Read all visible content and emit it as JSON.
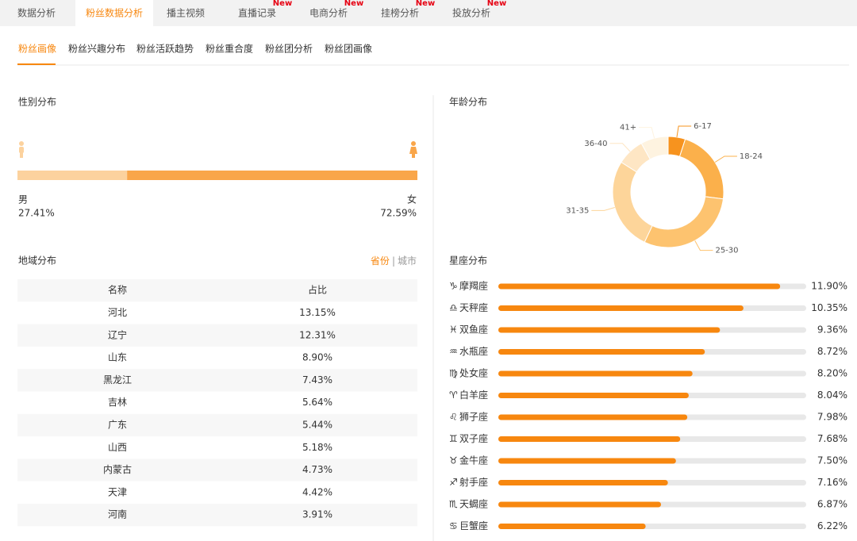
{
  "tabs": [
    {
      "label": "数据分析"
    },
    {
      "label": "粉丝数据分析",
      "active": true
    },
    {
      "label": "播主视频"
    },
    {
      "label": "直播记录",
      "badge": "New"
    },
    {
      "label": "电商分析",
      "badge": "New"
    },
    {
      "label": "挂榜分析",
      "badge": "New"
    },
    {
      "label": "投放分析",
      "badge": "New"
    }
  ],
  "subtabs": [
    {
      "label": "粉丝画像",
      "active": true
    },
    {
      "label": "粉丝兴趣分布"
    },
    {
      "label": "粉丝活跃趋势"
    },
    {
      "label": "粉丝重合度"
    },
    {
      "label": "粉丝团分析"
    },
    {
      "label": "粉丝团画像"
    }
  ],
  "gender": {
    "title": "性别分布",
    "male": {
      "label": "男",
      "value": 27.41,
      "value_label": "27.41%",
      "color": "#fcd29e"
    },
    "female": {
      "label": "女",
      "value": 72.59,
      "value_label": "72.59%",
      "color": "#f9a64a"
    }
  },
  "region": {
    "title": "地域分布",
    "toggle": [
      {
        "label": "省份",
        "active": true
      },
      {
        "label": "城市"
      }
    ],
    "separator": "|",
    "table": {
      "header": [
        "名称",
        "占比"
      ],
      "rows": [
        [
          "河北",
          "13.15%"
        ],
        [
          "辽宁",
          "12.31%"
        ],
        [
          "山东",
          "8.90%"
        ],
        [
          "黑龙江",
          "7.43%"
        ],
        [
          "吉林",
          "5.64%"
        ],
        [
          "广东",
          "5.44%"
        ],
        [
          "山西",
          "5.18%"
        ],
        [
          "内蒙古",
          "4.73%"
        ],
        [
          "天津",
          "4.42%"
        ],
        [
          "河南",
          "3.91%"
        ]
      ]
    }
  },
  "age": {
    "title": "年龄分布",
    "type": "donut",
    "categories": [
      "6-17",
      "18-24",
      "25-30",
      "31-35",
      "36-40",
      "41+"
    ],
    "values": [
      5,
      22,
      30,
      27,
      8,
      8
    ],
    "colors": [
      "#f7931e",
      "#fbb04b",
      "#fdc36f",
      "#fdd59a",
      "#fee6c4",
      "#fef3e0"
    ]
  },
  "zodiac": {
    "title": "星座分布",
    "type": "bar",
    "categories": [
      "摩羯座",
      "天秤座",
      "双鱼座",
      "水瓶座",
      "处女座",
      "白羊座",
      "狮子座",
      "双子座",
      "金牛座",
      "射手座",
      "天蝎座",
      "巨蟹座"
    ],
    "icons": [
      "♑",
      "♎",
      "♓",
      "♒",
      "♍",
      "♈",
      "♌",
      "♊",
      "♉",
      "♐",
      "♏",
      "♋"
    ],
    "values": [
      11.9,
      10.35,
      9.36,
      8.72,
      8.2,
      8.04,
      7.98,
      7.68,
      7.5,
      7.16,
      6.87,
      6.22
    ],
    "value_labels": [
      "11.90%",
      "10.35%",
      "9.36%",
      "8.72%",
      "8.20%",
      "8.04%",
      "7.98%",
      "7.68%",
      "7.50%",
      "7.16%",
      "6.87%",
      "6.22%"
    ],
    "xlim": [
      0,
      13
    ],
    "color": "#f7870f",
    "track_color": "#e8e8e8"
  }
}
